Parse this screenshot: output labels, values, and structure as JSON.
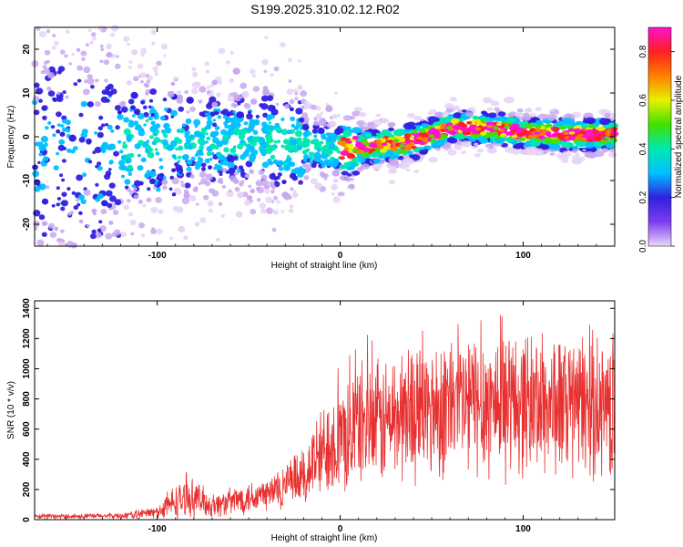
{
  "title": "S199.2025.310.02.12.R02",
  "chart_data": [
    {
      "type": "heatmap",
      "xlabel": "Height of straight line (km)",
      "ylabel": "Frequency (Hz)",
      "xlim": [
        -167,
        150
      ],
      "ylim": [
        -25,
        25
      ],
      "x_ticks": [
        -100,
        0,
        100
      ],
      "y_ticks": [
        -20,
        -10,
        0,
        10,
        20
      ],
      "colorbar": {
        "label": "Normalized spectral amplitude",
        "range": [
          0,
          0.9
        ],
        "ticks": [
          0.0,
          0.2,
          0.4,
          0.6,
          0.8
        ],
        "colors": [
          "#e9d8f6",
          "#7e3cf0",
          "#3020e0",
          "#00c0ff",
          "#00e8b0",
          "#40e000",
          "#e8f000",
          "#ff8000",
          "#ff2020",
          "#ff10d0"
        ]
      },
      "ridge": {
        "x": [
          -167,
          -120,
          -80,
          -40,
          -15,
          0,
          20,
          40,
          60,
          80,
          100,
          120,
          150
        ],
        "freq": [
          -4,
          -3,
          -1,
          -1,
          -2,
          -3,
          -2,
          -1,
          2,
          2,
          1,
          0.5,
          0.5
        ]
      }
    },
    {
      "type": "line",
      "xlabel": "Height of straight line (km)",
      "ylabel": "SNR (10 * v/v)",
      "xlim": [
        -167,
        150
      ],
      "ylim": [
        0,
        1450
      ],
      "x_ticks": [
        -100,
        0,
        100
      ],
      "y_ticks": [
        0,
        200,
        400,
        600,
        800,
        1000,
        1200,
        1400
      ],
      "color": "#e83030",
      "envelope": {
        "x": [
          -167,
          -120,
          -100,
          -90,
          -80,
          -70,
          -60,
          -50,
          -40,
          -30,
          -20,
          -15,
          -10,
          -5,
          0,
          10,
          20,
          30,
          40,
          60,
          80,
          100,
          120,
          150
        ],
        "mean": [
          20,
          25,
          50,
          120,
          150,
          90,
          120,
          150,
          170,
          220,
          280,
          380,
          420,
          550,
          500,
          650,
          620,
          680,
          720,
          760,
          780,
          780,
          760,
          750
        ],
        "spread": [
          15,
          20,
          40,
          120,
          120,
          80,
          90,
          110,
          120,
          160,
          200,
          260,
          320,
          350,
          380,
          400,
          420,
          440,
          460,
          480,
          500,
          480,
          480,
          470
        ]
      }
    }
  ]
}
